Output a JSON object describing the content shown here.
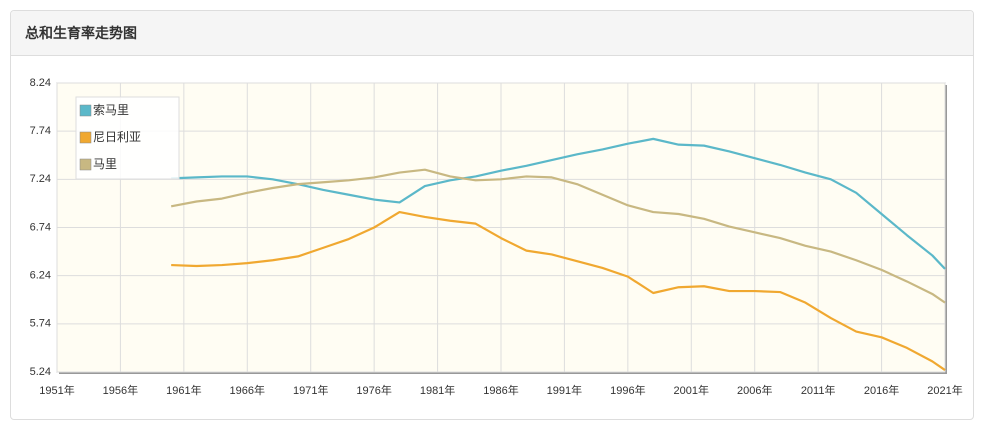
{
  "header": {
    "title": "总和生育率走势图"
  },
  "chart_data": {
    "type": "line",
    "x": [
      1960,
      1962,
      1964,
      1966,
      1968,
      1970,
      1972,
      1974,
      1976,
      1978,
      1980,
      1982,
      1984,
      1986,
      1988,
      1990,
      1992,
      1994,
      1996,
      1998,
      2000,
      2002,
      2004,
      2006,
      2008,
      2010,
      2012,
      2014,
      2016,
      2018,
      2020,
      2021
    ],
    "series": [
      {
        "name": "索马里",
        "color": "#5bb8c9",
        "values": [
          7.25,
          7.26,
          7.27,
          7.27,
          7.24,
          7.19,
          7.13,
          7.08,
          7.03,
          7.0,
          7.17,
          7.23,
          7.27,
          7.33,
          7.38,
          7.44,
          7.5,
          7.55,
          7.61,
          7.66,
          7.6,
          7.59,
          7.53,
          7.46,
          7.39,
          7.31,
          7.24,
          7.1,
          6.88,
          6.66,
          6.45,
          6.31
        ]
      },
      {
        "name": "尼日利亚",
        "color": "#f0a830",
        "values": [
          6.35,
          6.34,
          6.35,
          6.37,
          6.4,
          6.44,
          6.53,
          6.62,
          6.74,
          6.9,
          6.85,
          6.81,
          6.78,
          6.63,
          6.5,
          6.46,
          6.39,
          6.32,
          6.23,
          6.06,
          6.12,
          6.13,
          6.08,
          6.08,
          6.07,
          5.96,
          5.8,
          5.66,
          5.6,
          5.49,
          5.35,
          5.26
        ]
      },
      {
        "name": "马里",
        "color": "#c8b882",
        "values": [
          6.96,
          7.01,
          7.04,
          7.1,
          7.15,
          7.19,
          7.21,
          7.23,
          7.26,
          7.31,
          7.34,
          7.27,
          7.23,
          7.24,
          7.27,
          7.26,
          7.19,
          7.08,
          6.97,
          6.9,
          6.88,
          6.83,
          6.75,
          6.69,
          6.63,
          6.55,
          6.49,
          6.4,
          6.3,
          6.18,
          6.05,
          5.96
        ]
      }
    ],
    "xlim": [
      1951,
      2021
    ],
    "xticks": [
      {
        "value": 1951,
        "label": "1951年"
      },
      {
        "value": 1956,
        "label": "1956年"
      },
      {
        "value": 1961,
        "label": "1961年"
      },
      {
        "value": 1966,
        "label": "1966年"
      },
      {
        "value": 1971,
        "label": "1971年"
      },
      {
        "value": 1976,
        "label": "1976年"
      },
      {
        "value": 1981,
        "label": "1981年"
      },
      {
        "value": 1986,
        "label": "1986年"
      },
      {
        "value": 1991,
        "label": "1991年"
      },
      {
        "value": 1996,
        "label": "1996年"
      },
      {
        "value": 2001,
        "label": "2001年"
      },
      {
        "value": 2006,
        "label": "2006年"
      },
      {
        "value": 2011,
        "label": "2011年"
      },
      {
        "value": 2016,
        "label": "2016年"
      },
      {
        "value": 2021,
        "label": "2021年"
      }
    ],
    "ylim": [
      5.24,
      8.24
    ],
    "yticks": [
      5.24,
      5.74,
      6.24,
      6.74,
      7.24,
      7.74,
      8.24
    ],
    "grid": true,
    "legend": "top-left"
  }
}
